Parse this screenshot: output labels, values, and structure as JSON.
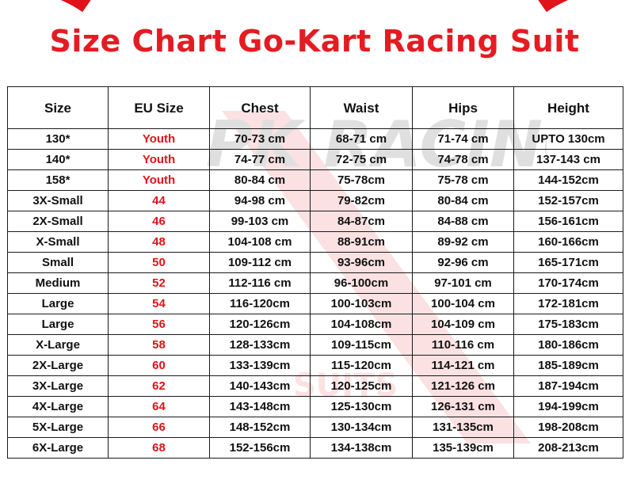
{
  "title": "Size Chart Go-Kart Racing Suit",
  "colors": {
    "accent": "#e51b23",
    "text": "#111111",
    "border": "#1a1a1a"
  },
  "table": {
    "headers": [
      "Size",
      "EU Size",
      "Chest",
      "Waist",
      "Hips",
      "Height"
    ],
    "rows": [
      [
        "130*",
        "Youth",
        "70-73 cm",
        "68-71 cm",
        "71-74 cm",
        "UPTO 130cm"
      ],
      [
        "140*",
        "Youth",
        "74-77 cm",
        "72-75 cm",
        "74-78 cm",
        "137-143 cm"
      ],
      [
        "158*",
        "Youth",
        "80-84 cm",
        "75-78cm",
        "75-78 cm",
        "144-152cm"
      ],
      [
        "3X-Small",
        "44",
        "94-98 cm",
        "79-82cm",
        "80-84 cm",
        "152-157cm"
      ],
      [
        "2X-Small",
        "46",
        "99-103 cm",
        "84-87cm",
        "84-88 cm",
        "156-161cm"
      ],
      [
        "X-Small",
        "48",
        "104-108 cm",
        "88-91cm",
        "89-92 cm",
        "160-166cm"
      ],
      [
        "Small",
        "50",
        "109-112 cm",
        "93-96cm",
        "92-96 cm",
        "165-171cm"
      ],
      [
        "Medium",
        "52",
        "112-116 cm",
        "96-100cm",
        "97-101 cm",
        "170-174cm"
      ],
      [
        "Large",
        "54",
        "116-120cm",
        "100-103cm",
        "100-104 cm",
        "172-181cm"
      ],
      [
        "Large",
        "56",
        "120-126cm",
        "104-108cm",
        "104-109 cm",
        "175-183cm"
      ],
      [
        "X-Large",
        "58",
        "128-133cm",
        "109-115cm",
        "110-116 cm",
        "180-186cm"
      ],
      [
        "2X-Large",
        "60",
        "133-139cm",
        "115-120cm",
        "114-121 cm",
        "185-189cm"
      ],
      [
        "3X-Large",
        "62",
        "140-143cm",
        "120-125cm",
        "121-126 cm",
        "187-194cm"
      ],
      [
        "4X-Large",
        "64",
        "143-148cm",
        "125-130cm",
        "126-131 cm",
        "194-199cm"
      ],
      [
        "5X-Large",
        "66",
        "148-152cm",
        "130-134cm",
        "131-135cm",
        "198-208cm"
      ],
      [
        "6X-Large",
        "68",
        "152-156cm",
        "134-138cm",
        "135-139cm",
        "208-213cm"
      ]
    ]
  },
  "watermark": {
    "logo_text": "PK RACING",
    "subtext": "SUITS"
  }
}
